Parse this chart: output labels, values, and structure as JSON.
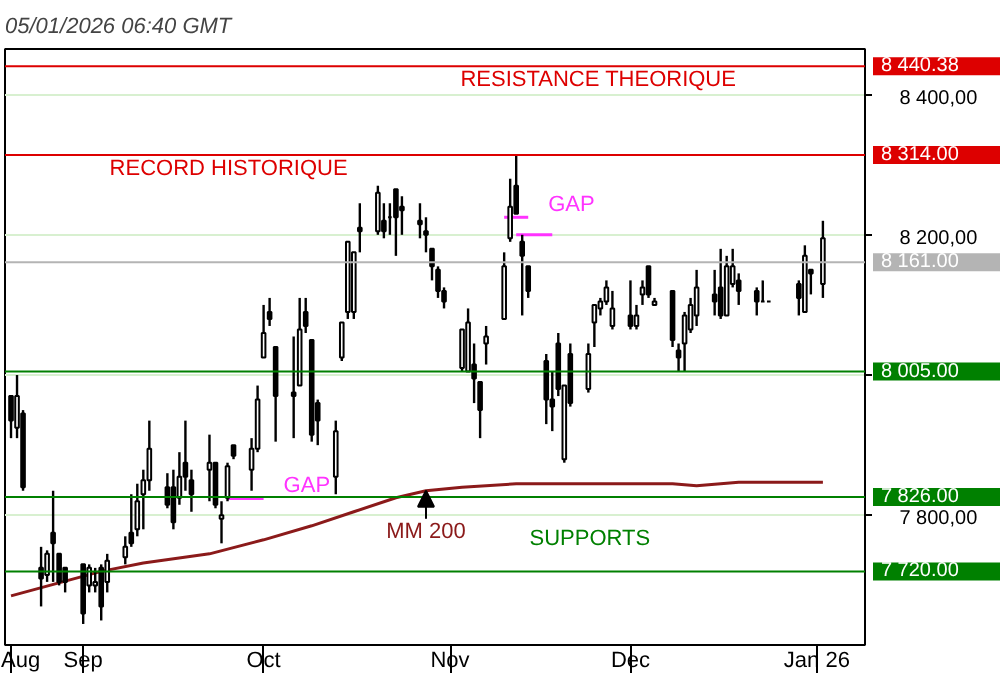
{
  "chart_data": {
    "type": "candlestick",
    "title": "05/01/2026 06:40 GMT",
    "x": [
      "2025-08-20",
      "2025-08-21",
      "2025-08-22",
      "2025-08-25",
      "2025-08-26",
      "2025-08-27",
      "2025-08-28",
      "2025-08-29",
      "2025-09-01",
      "2025-09-02",
      "2025-09-03",
      "2025-09-04",
      "2025-09-05",
      "2025-09-08",
      "2025-09-09",
      "2025-09-10",
      "2025-09-11",
      "2025-09-12",
      "2025-09-15",
      "2025-09-16",
      "2025-09-17",
      "2025-09-18",
      "2025-09-19",
      "2025-09-22",
      "2025-09-23",
      "2025-09-24",
      "2025-09-25",
      "2025-09-26",
      "2025-09-29",
      "2025-09-30",
      "2025-10-01",
      "2025-10-02",
      "2025-10-03",
      "2025-10-06",
      "2025-10-07",
      "2025-10-08",
      "2025-10-09",
      "2025-10-10",
      "2025-10-13",
      "2025-10-14",
      "2025-10-15",
      "2025-10-16",
      "2025-10-17",
      "2025-10-20",
      "2025-10-21",
      "2025-10-22",
      "2025-10-23",
      "2025-10-24",
      "2025-10-27",
      "2025-10-28",
      "2025-10-29",
      "2025-10-30",
      "2025-10-31",
      "2025-11-03",
      "2025-11-04",
      "2025-11-05",
      "2025-11-06",
      "2025-11-07",
      "2025-11-10",
      "2025-11-11",
      "2025-11-12",
      "2025-11-13",
      "2025-11-14",
      "2025-11-17",
      "2025-11-18",
      "2025-11-19",
      "2025-11-20",
      "2025-11-21",
      "2025-11-24",
      "2025-11-25",
      "2025-11-26",
      "2025-11-27",
      "2025-11-28",
      "2025-12-01",
      "2025-12-02",
      "2025-12-03",
      "2025-12-04",
      "2025-12-05",
      "2025-12-08",
      "2025-12-09",
      "2025-12-10",
      "2025-12-11",
      "2025-12-12",
      "2025-12-15",
      "2025-12-16",
      "2025-12-17",
      "2025-12-18",
      "2025-12-19",
      "2025-12-22",
      "2025-12-23",
      "2025-12-24",
      "2025-12-29",
      "2025-12-30",
      "2025-12-31",
      "2026-01-02"
    ],
    "ohlc": [
      [
        7970,
        7970,
        7910,
        7935
      ],
      [
        7925,
        8000,
        7910,
        7970
      ],
      [
        7945,
        7950,
        7835,
        7840
      ],
      [
        7725,
        7755,
        7670,
        7710
      ],
      [
        7715,
        7750,
        7705,
        7745
      ],
      [
        7775,
        7835,
        7705,
        7760
      ],
      [
        7745,
        7745,
        7700,
        7705
      ],
      [
        7725,
        7725,
        7690,
        7705
      ],
      [
        7730,
        7730,
        7645,
        7660
      ],
      [
        7700,
        7730,
        7690,
        7725
      ],
      [
        7700,
        7725,
        7690,
        7705
      ],
      [
        7725,
        7730,
        7650,
        7670
      ],
      [
        7705,
        7745,
        7690,
        7735
      ],
      [
        7740,
        7770,
        7730,
        7755
      ],
      [
        7775,
        7830,
        7755,
        7760
      ],
      [
        7780,
        7845,
        7770,
        7820
      ],
      [
        7830,
        7865,
        7780,
        7850
      ],
      [
        7850,
        7935,
        7835,
        7895
      ],
      [
        7840,
        7860,
        7810,
        7815
      ],
      [
        7840,
        7865,
        7780,
        7790
      ],
      [
        7825,
        7890,
        7815,
        7855
      ],
      [
        7875,
        7935,
        7835,
        7855
      ],
      [
        7850,
        7865,
        7805,
        7830
      ],
      [
        7865,
        7915,
        7820,
        7875
      ],
      [
        7875,
        7875,
        7810,
        7815
      ],
      [
        7795,
        7820,
        7760,
        7800
      ],
      [
        7825,
        7875,
        7820,
        7870
      ],
      [
        7900,
        7900,
        7880,
        7885
      ],
      [
        7865,
        7910,
        7835,
        7895
      ],
      [
        7895,
        7985,
        7890,
        7965
      ],
      [
        8025,
        8100,
        8025,
        8060
      ],
      [
        8090,
        8110,
        8070,
        8080
      ],
      [
        8040,
        8040,
        7905,
        7970
      ],
      [
        7975,
        8055,
        7910,
        7970
      ],
      [
        7985,
        8110,
        7985,
        8065
      ],
      [
        8090,
        8110,
        8060,
        8070
      ],
      [
        8050,
        8050,
        7905,
        7915
      ],
      [
        7960,
        7965,
        7900,
        7935
      ],
      [
        7855,
        7935,
        7830,
        7920
      ],
      [
        8025,
        8075,
        8020,
        8075
      ],
      [
        8090,
        8190,
        8080,
        8190
      ],
      [
        8090,
        8175,
        8080,
        8175
      ],
      [
        8210,
        8245,
        8175,
        8205
      ],
      [
        8205,
        8270,
        8200,
        8260
      ],
      [
        8220,
        8245,
        8195,
        8205
      ],
      [
        8225,
        8245,
        8200,
        8225
      ],
      [
        8265,
        8265,
        8170,
        8225
      ],
      [
        8240,
        8255,
        8200,
        8235
      ],
      [
        8220,
        8245,
        8195,
        8215
      ],
      [
        8205,
        8225,
        8175,
        8200
      ],
      [
        8180,
        8180,
        8135,
        8155
      ],
      [
        8150,
        8155,
        8110,
        8120
      ],
      [
        8120,
        8125,
        8095,
        8105
      ],
      [
        8010,
        8065,
        8005,
        8065
      ],
      [
        8005,
        8095,
        8005,
        8075
      ],
      [
        8015,
        8045,
        7960,
        7995
      ],
      [
        7990,
        7990,
        7910,
        7950
      ],
      [
        8045,
        8070,
        8015,
        8055
      ],
      [
        8080,
        8175,
        8080,
        8155
      ],
      [
        8195,
        8280,
        8190,
        8240
      ],
      [
        8270,
        8314,
        8230,
        8230
      ],
      [
        8190,
        8200,
        8085,
        8170
      ],
      [
        8155,
        8155,
        8110,
        8120
      ],
      [
        8020,
        8030,
        7930,
        7965
      ],
      [
        7965,
        8005,
        7920,
        7955
      ],
      [
        8045,
        8060,
        7970,
        7980
      ],
      [
        7880,
        7985,
        7875,
        7985
      ],
      [
        8030,
        8045,
        7955,
        7960
      ],
      [
        7980,
        8045,
        7975,
        8030
      ],
      [
        8075,
        8100,
        8040,
        8100
      ],
      [
        8095,
        8110,
        8085,
        8105
      ],
      [
        8105,
        8135,
        8100,
        8125
      ],
      [
        8070,
        8120,
        8065,
        8095
      ],
      [
        8085,
        8135,
        8065,
        8070
      ],
      [
        8070,
        8100,
        8065,
        8085
      ],
      [
        8115,
        8135,
        8100,
        8125
      ],
      [
        8155,
        8155,
        8110,
        8115
      ],
      [
        8100,
        8110,
        8100,
        8105
      ],
      [
        8120,
        8120,
        8040,
        8050
      ],
      [
        8035,
        8045,
        8005,
        8025
      ],
      [
        8045,
        8090,
        8005,
        8085
      ],
      [
        8065,
        8110,
        8060,
        8100
      ],
      [
        8085,
        8150,
        8070,
        8125
      ],
      [
        8115,
        8150,
        8085,
        8105
      ],
      [
        8125,
        8180,
        8080,
        8085
      ],
      [
        8085,
        8170,
        8085,
        8155
      ],
      [
        8130,
        8180,
        8125,
        8155
      ],
      [
        8135,
        8145,
        8100,
        8120
      ],
      [
        8120,
        8125,
        8085,
        8105
      ],
      [
        8105,
        8135,
        8105,
        8105
      ],
      [
        8105,
        8105,
        8105,
        8105
      ],
      [
        8130,
        8135,
        8085,
        8110
      ],
      [
        8090,
        8185,
        8090,
        8170
      ],
      [
        8150,
        8150,
        8115,
        8145
      ],
      [
        8130,
        8220,
        8110,
        8195
      ]
    ],
    "series": [
      {
        "type": "line",
        "name": "MM 200",
        "color": "#8b1a1a",
        "x": [
          "2025-08-20",
          "2025-09-04",
          "2025-09-11",
          "2025-09-22",
          "2025-10-01",
          "2025-10-09",
          "2025-10-16",
          "2025-10-23",
          "2025-10-28",
          "2025-11-03",
          "2025-11-12",
          "2025-11-25",
          "2025-12-08",
          "2025-12-12",
          "2025-12-19",
          "2026-01-02"
        ],
        "values": [
          7685,
          7720,
          7732,
          7745,
          7765,
          7785,
          7805,
          7825,
          7835,
          7840,
          7845,
          7845,
          7845,
          7842,
          7847,
          7847
        ]
      },
      {
        "type": "line",
        "name": "GAP",
        "color": "#ff33ff",
        "x": [
          "2025-09-25",
          "2025-10-01"
        ],
        "values": [
          7824,
          7824
        ]
      },
      {
        "type": "line",
        "color": "#ff33ff",
        "x": [
          "2025-11-12",
          "2025-11-18"
        ],
        "values": [
          8200,
          8200
        ]
      },
      {
        "type": "line",
        "name": "GAP",
        "color": "#ff33ff",
        "x": [
          "2025-11-10",
          "2025-11-14"
        ],
        "values": [
          8225,
          8225
        ]
      }
    ],
    "xlim": [
      "2025-08-19",
      "2026-01-09"
    ],
    "xticks": [
      {
        "value": "2025-08-20",
        "label": "Aug"
      },
      {
        "value": "2025-09-01",
        "label": "Sep"
      },
      {
        "value": "2025-10-01",
        "label": "Oct"
      },
      {
        "value": "2025-11-01",
        "label": "Nov"
      },
      {
        "value": "2025-12-01",
        "label": "Dec"
      },
      {
        "value": "2026-01-01",
        "label": "Jan 26"
      }
    ],
    "ylim": [
      7615,
      8465
    ],
    "yticks": [
      {
        "value": 7800,
        "label": "7 800,00"
      },
      {
        "value": 8000,
        "label": null
      },
      {
        "value": 8200,
        "label": "8 200,00"
      },
      {
        "value": 8400,
        "label": "8 400,00"
      }
    ],
    "grid": "y",
    "ref_lines": [
      {
        "axis": "y",
        "value": 8440.38,
        "label": "8 440.38",
        "color": "#dd0000"
      },
      {
        "axis": "y",
        "value": 8314,
        "label": "8 314.00",
        "color": "#dd0000"
      },
      {
        "axis": "y",
        "value": 8161,
        "label": "8 161.00",
        "color": "#b4b4b4"
      },
      {
        "axis": "y",
        "value": 8005,
        "label": "8 005.00",
        "color": "#008000"
      },
      {
        "axis": "y",
        "value": 7826,
        "label": "7 826.00",
        "color": "#008000"
      },
      {
        "axis": "y",
        "value": 7720,
        "label": "7 720.00",
        "color": "#008000"
      }
    ],
    "annotations": [
      "RESISTANCE THEORIQUE",
      "RECORD HISTORIQUE",
      "SUPPORTS"
    ]
  }
}
